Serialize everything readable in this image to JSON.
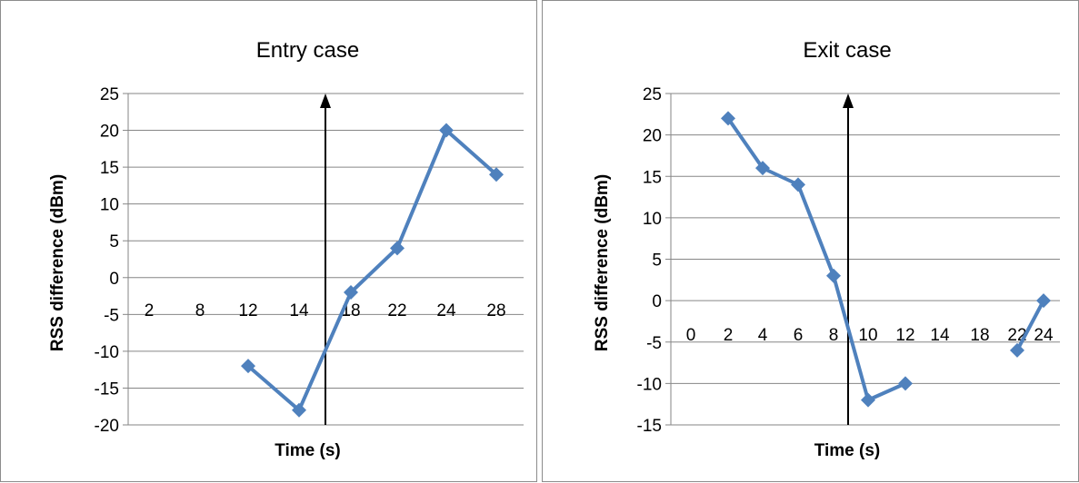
{
  "chart_data": [
    {
      "type": "line",
      "title": "Entry case",
      "xlabel": "Time (s)",
      "ylabel": "RSS difference (dBm)",
      "categories": [
        "2",
        "8",
        "12",
        "14",
        "18",
        "22",
        "24",
        "28"
      ],
      "values": [
        null,
        null,
        -12,
        -18,
        -2,
        4,
        20,
        14
      ],
      "ylim": [
        -20,
        25
      ],
      "yticks": [
        "25",
        "20",
        "15",
        "10",
        "5",
        "0",
        "-5",
        "-10",
        "-15",
        "-20"
      ],
      "grid": true,
      "marker": "diamond",
      "series_color": "#4f81bd",
      "annotation": {
        "type": "vertical-arrow",
        "x_between": [
          "14",
          "18"
        ]
      }
    },
    {
      "type": "line",
      "title": "Exit case",
      "xlabel": "Time (s)",
      "ylabel": "RSS difference (dBm)",
      "categories": [
        "0",
        "2",
        "4",
        "6",
        "8",
        "10",
        "12",
        "14",
        "18",
        "22",
        "24"
      ],
      "values": [
        null,
        22,
        16,
        14,
        3,
        -12,
        -10,
        null,
        null,
        -6,
        0
      ],
      "ylim": [
        -15,
        25
      ],
      "yticks": [
        "25",
        "20",
        "15",
        "10",
        "5",
        "0",
        "-5",
        "-10",
        "-15"
      ],
      "grid": true,
      "marker": "diamond",
      "series_color": "#4f81bd",
      "annotation": {
        "type": "vertical-arrow",
        "x_between": [
          "8",
          "10"
        ]
      }
    }
  ]
}
